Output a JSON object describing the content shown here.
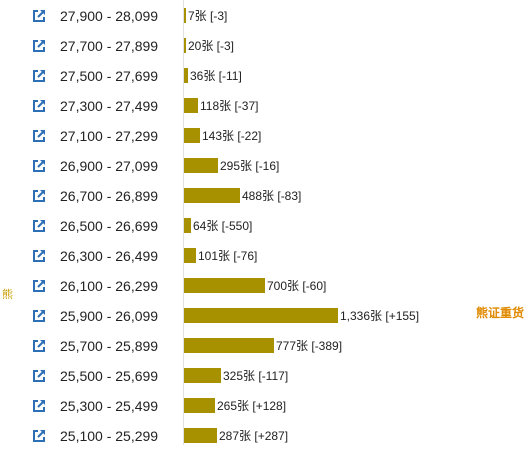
{
  "colors": {
    "bar": "#a89100",
    "icon": "#2c6fb5",
    "left_label": "#c79d00",
    "right_label": "#e08a00"
  },
  "icon_name": "external-link-icon",
  "left_label": "熊",
  "right_label": "熊证重货",
  "rows": [
    {
      "range": "27,900 - 28,099",
      "count_label": "7张 [-3]",
      "count": 7
    },
    {
      "range": "27,700 - 27,899",
      "count_label": "20张 [-3]",
      "count": 20
    },
    {
      "range": "27,500 - 27,699",
      "count_label": "36张 [-11]",
      "count": 36
    },
    {
      "range": "27,300 - 27,499",
      "count_label": "118张 [-37]",
      "count": 118
    },
    {
      "range": "27,100 - 27,299",
      "count_label": "143张 [-22]",
      "count": 143
    },
    {
      "range": "26,900 - 27,099",
      "count_label": "295张 [-16]",
      "count": 295
    },
    {
      "range": "26,700 - 26,899",
      "count_label": "488张 [-83]",
      "count": 488
    },
    {
      "range": "26,500 - 26,699",
      "count_label": "64张 [-550]",
      "count": 64
    },
    {
      "range": "26,300 - 26,499",
      "count_label": "101张 [-76]",
      "count": 101
    },
    {
      "range": "26,100 - 26,299",
      "count_label": "700张 [-60]",
      "count": 700
    },
    {
      "range": "25,900 - 26,099",
      "count_label": "1,336张 [+155]",
      "count": 1336
    },
    {
      "range": "25,700 - 25,899",
      "count_label": "777张 [-389]",
      "count": 777
    },
    {
      "range": "25,500 - 25,699",
      "count_label": "325张 [-117]",
      "count": 325
    },
    {
      "range": "25,300 - 25,499",
      "count_label": "265张 [+128]",
      "count": 265
    },
    {
      "range": "25,100 - 25,299",
      "count_label": "287张 [+287]",
      "count": 287
    }
  ]
}
